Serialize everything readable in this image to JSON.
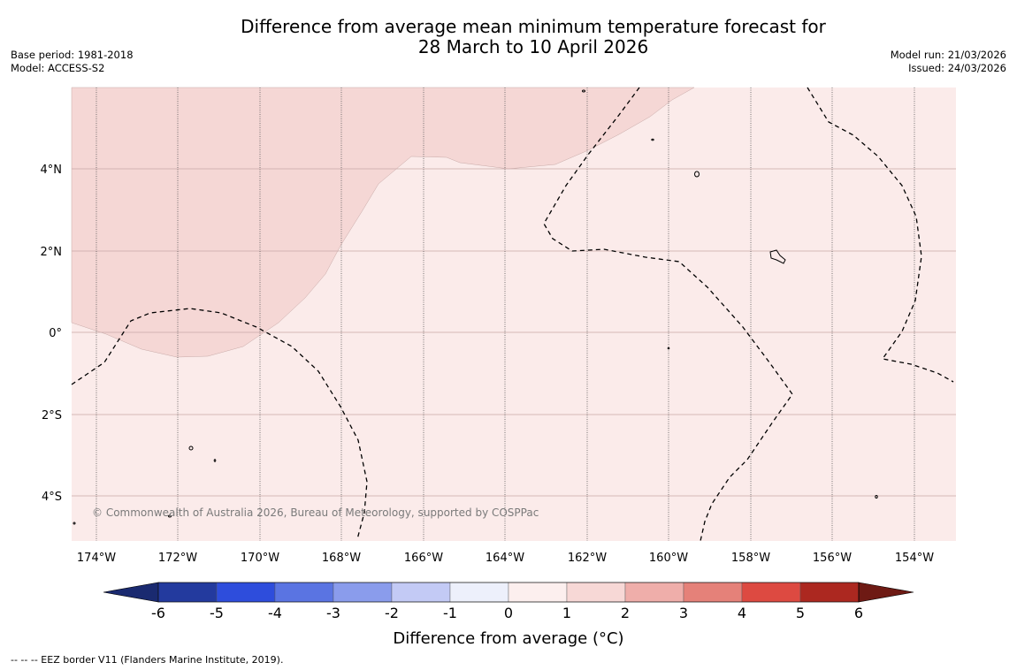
{
  "title": {
    "line1": "Difference from average mean minimum temperature forecast for",
    "line2": "28 March to 10 April 2026"
  },
  "meta_left": {
    "base_period": "Base period: 1981-2018",
    "model": "Model: ACCESS-S2"
  },
  "meta_right": {
    "model_run": "Model run: 21/03/2026",
    "issued": "Issued: 24/03/2026"
  },
  "map": {
    "extent": {
      "lon_min": -174.6,
      "lon_max": -152.9,
      "lat_min": -5.15,
      "lat_max": 5.95
    },
    "lat_labels": [
      "4°N",
      "2°N",
      "0°",
      "2°S",
      "4°S"
    ],
    "lon_labels": [
      "174°W",
      "172°W",
      "170°W",
      "168°W",
      "166°W",
      "164°W",
      "162°W",
      "160°W",
      "158°W",
      "156°W",
      "154°W"
    ],
    "copyright": "© Commonwealth of Australia 2026, Bureau of Meteorology, supported by COSPPac",
    "colors": {
      "anomaly_0_1": "#fbebea",
      "anomaly_1_2": "#f5d7d5",
      "gridline_lat": "#c9a7a6",
      "gridline_lon": "#555555"
    }
  },
  "colorbar": {
    "ticks": [
      "-6",
      "-5",
      "-4",
      "-3",
      "-2",
      "-1",
      "0",
      "1",
      "2",
      "3",
      "4",
      "5",
      "6"
    ],
    "colors": [
      "#233a9e",
      "#2e4ddc",
      "#5a74e2",
      "#8a9cec",
      "#c3caf5",
      "#edf0fb",
      "#fcefee",
      "#f7d8d6",
      "#efaeaa",
      "#e58179",
      "#dd4a41",
      "#ac2820"
    ],
    "under_color": "#1a2a70",
    "over_color": "#6e1a14",
    "label": "Difference from average (°C)"
  },
  "eez_note": "--  --  -- EEZ border V11 (Flanders Marine Institute, 2019)."
}
